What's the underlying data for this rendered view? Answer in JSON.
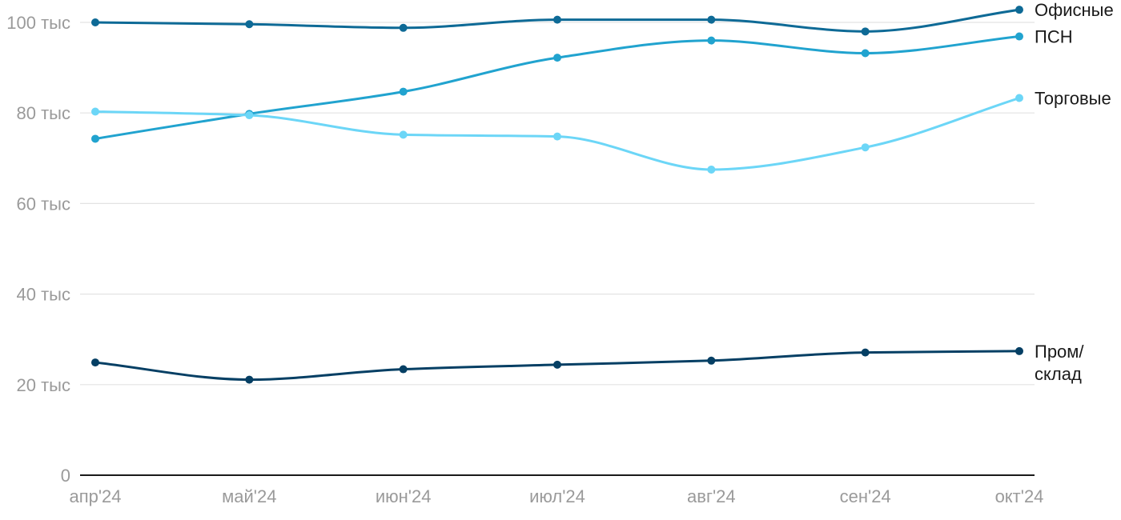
{
  "chart_data": {
    "type": "line",
    "title": "",
    "xlabel": "",
    "ylabel": "",
    "categories": [
      "апр'24",
      "май'24",
      "июн'24",
      "июл'24",
      "авг'24",
      "сен'24",
      "окт'24"
    ],
    "ylim": [
      0,
      100000
    ],
    "y_ticks": [
      {
        "value": 0,
        "label": "0"
      },
      {
        "value": 20000,
        "label": "20 тыс"
      },
      {
        "value": 40000,
        "label": "40 тыс"
      },
      {
        "value": 60000,
        "label": "60 тыс"
      },
      {
        "value": 80000,
        "label": "80 тыс"
      },
      {
        "value": 100000,
        "label": "100 тыс"
      }
    ],
    "grid": true,
    "legend": "direct labels at line ends (right)",
    "series": [
      {
        "name": "Офисные",
        "label_lines": [
          "Офисные"
        ],
        "color": "#0e6a96",
        "values": [
          100000,
          99600,
          98800,
          100600,
          100600,
          98000,
          102800
        ]
      },
      {
        "name": "ПСН",
        "label_lines": [
          "ПСН"
        ],
        "color": "#21a3cf",
        "values": [
          74300,
          79800,
          84700,
          92200,
          96000,
          93200,
          96900
        ]
      },
      {
        "name": "Торговые",
        "label_lines": [
          "Торговые"
        ],
        "color": "#6cd6f7",
        "values": [
          80300,
          79500,
          75200,
          74800,
          67500,
          72400,
          83300
        ]
      },
      {
        "name": "Пром/склад",
        "label_lines": [
          "Пром/",
          "склад"
        ],
        "color": "#053f64",
        "values": [
          24900,
          21100,
          23400,
          24400,
          25300,
          27100,
          27400
        ]
      }
    ]
  }
}
